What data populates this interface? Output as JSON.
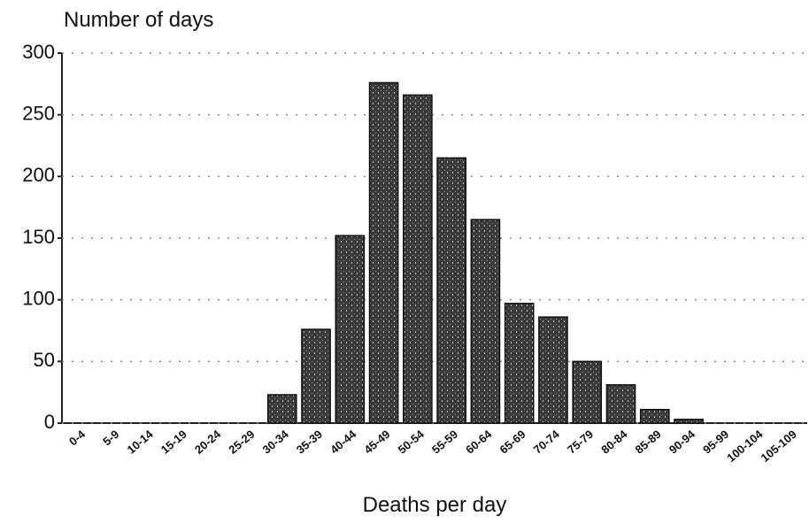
{
  "chart_data": {
    "type": "bar",
    "y_label": "Number of days",
    "x_label": "Deaths per day",
    "categories": [
      "0-4",
      "5-9",
      "10-14",
      "15-19",
      "20-24",
      "25-29",
      "30-34",
      "35-39",
      "40-44",
      "45-49",
      "50-54",
      "55-59",
      "60-64",
      "65-69",
      "70-74",
      "75-79",
      "80-84",
      "85-89",
      "90-94",
      "95-99",
      "100-104",
      "105-109"
    ],
    "values": [
      0,
      0,
      0,
      0,
      0,
      0,
      23,
      76,
      152,
      276,
      266,
      215,
      165,
      97,
      86,
      50,
      31,
      11,
      3,
      0,
      0,
      0
    ],
    "color": "#4a4a4a",
    "ylim": [
      0,
      300
    ],
    "yticks": [
      0,
      50,
      100,
      150,
      200,
      250,
      300
    ],
    "grid": true
  }
}
